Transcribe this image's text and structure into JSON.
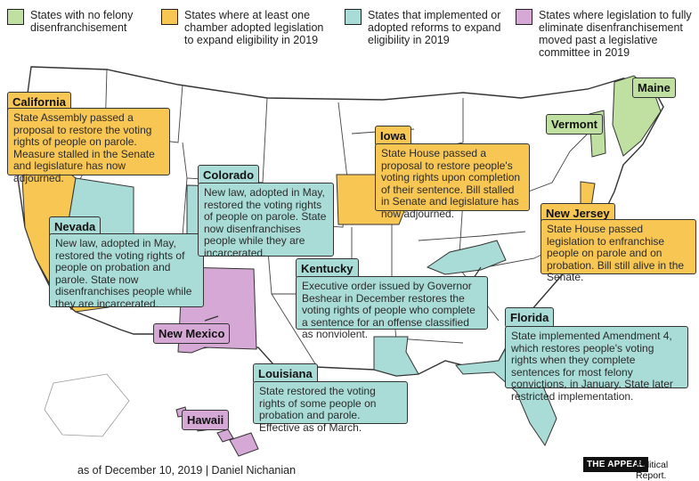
{
  "colors": {
    "green": "#bfe0a0",
    "yellow": "#f7c653",
    "teal": "#a9dcd7",
    "pink": "#d6a8d6"
  },
  "legend": [
    {
      "color": "green",
      "text": "States with no felony disenfranchisement"
    },
    {
      "color": "yellow",
      "text": "States where at least one chamber adopted legislation to expand eligibility in 2019"
    },
    {
      "color": "teal",
      "text": "States that implemented or adopted reforms to expand eligibility in 2019"
    },
    {
      "color": "pink",
      "text": "States where legislation to fully eliminate disenfranchisement moved past a legislative committee in 2019"
    }
  ],
  "states": {
    "california": {
      "name": "California",
      "note": "State Assembly passed a proposal to restore the voting rights of people on parole. Measure stalled in the Senate and legislature has now adjourned."
    },
    "nevada": {
      "name": "Nevada",
      "note": "New law, adopted in May, restored the voting rights of people on probation and parole. State now disenfranchises people while they are incarcerated."
    },
    "colorado": {
      "name": "Colorado",
      "note": "New law, adopted in May, restored the voting rights of people on parole. State now disenfranchises people while they are incarcerated."
    },
    "iowa": {
      "name": "Iowa",
      "note": "State House passed a proposal to restore people's voting rights upon completion of their sentence. Bill stalled in Senate and legislature has now adjourned."
    },
    "new_jersey": {
      "name": "New Jersey",
      "note": "State House passed legislation to enfranchise people on parole and on probation. Bill still alive in the Senate."
    },
    "kentucky": {
      "name": "Kentucky",
      "note": "Executive order issued by Governor Beshear in December restores the voting rights of people who complete a sentence for an offense classified as nonviolent."
    },
    "florida": {
      "name": "Florida",
      "note": "State implemented Amendment 4, which restores people's voting rights when they complete sentences for most felony convictions, in January. State later restricted implementation."
    },
    "louisiana": {
      "name": "Louisiana",
      "note": "State restored the voting rights of some people on probation and parole. Effective as of March."
    },
    "new_mexico": {
      "name": "New Mexico"
    },
    "hawaii": {
      "name": "Hawaii"
    },
    "vermont": {
      "name": "Vermont"
    },
    "maine": {
      "name": "Maine"
    }
  },
  "footer": {
    "credit": "as of December 10, 2019 | Daniel Nichanian",
    "logo": "THE APPEAL",
    "tagline": "Political Report."
  }
}
